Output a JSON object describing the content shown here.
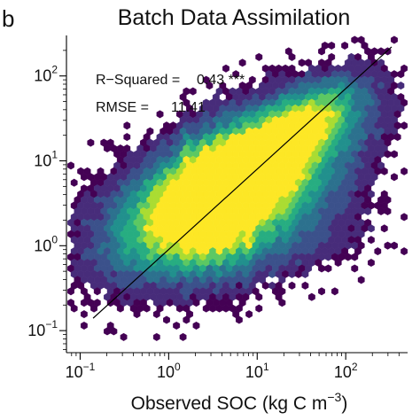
{
  "panel_label": "b",
  "chart_data": {
    "type": "hexbin",
    "title": "Batch Data Assimilation",
    "xlabel": {
      "main": "Observed SOC (kg C m",
      "sup": "−3",
      "close": ")"
    },
    "ylabel": "",
    "x_scale": "log10",
    "y_scale": "log10",
    "xlim": [
      0.07,
      500
    ],
    "ylim": [
      0.055,
      300
    ],
    "x_ticks": [
      {
        "value": 0.1,
        "base": "10",
        "exp": "−1"
      },
      {
        "value": 1,
        "base": "10",
        "exp": "0"
      },
      {
        "value": 10,
        "base": "10",
        "exp": "1"
      },
      {
        "value": 100,
        "base": "10",
        "exp": "2"
      }
    ],
    "y_ticks": [
      {
        "value": 0.1,
        "base": "10",
        "exp": "−1"
      },
      {
        "value": 1,
        "base": "10",
        "exp": "0"
      },
      {
        "value": 10,
        "base": "10",
        "exp": "1"
      },
      {
        "value": 100,
        "base": "10",
        "exp": "2"
      }
    ],
    "annotations": [
      {
        "label": "R−Squared = ",
        "value": "0.43 ***"
      },
      {
        "label": "RMSE = ",
        "value": "11.41"
      }
    ],
    "reference_line": {
      "type": "1:1",
      "from": [
        0.14,
        0.14
      ],
      "to": [
        330,
        220
      ]
    },
    "colormap": [
      "#440154",
      "#472c7a",
      "#3b518b",
      "#2c718e",
      "#21908d",
      "#27ad81",
      "#5cc863",
      "#aadc32",
      "#fde725"
    ],
    "density_clusters": [
      {
        "x": 8,
        "y": 7,
        "sx": 1.35,
        "sy": 1.15,
        "rot": 0.55,
        "w": 1.0
      },
      {
        "x": 3,
        "y": 3.5,
        "sx": 0.9,
        "sy": 0.9,
        "rot": 0.5,
        "w": 0.75
      },
      {
        "x": 30,
        "y": 25,
        "sx": 0.75,
        "sy": 0.55,
        "rot": 0.6,
        "w": 0.55
      },
      {
        "x": 12,
        "y": 1.2,
        "sx": 1.3,
        "sy": 1.0,
        "rot": 0.2,
        "w": 0.25
      },
      {
        "x": 0.5,
        "y": 1.5,
        "sx": 1.1,
        "sy": 1.6,
        "rot": 0.0,
        "w": 0.12
      }
    ],
    "striped_x_values": [
      1.6,
      2.5,
      3.7,
      5.2,
      8.0
    ],
    "grid": false,
    "legend": "none"
  }
}
